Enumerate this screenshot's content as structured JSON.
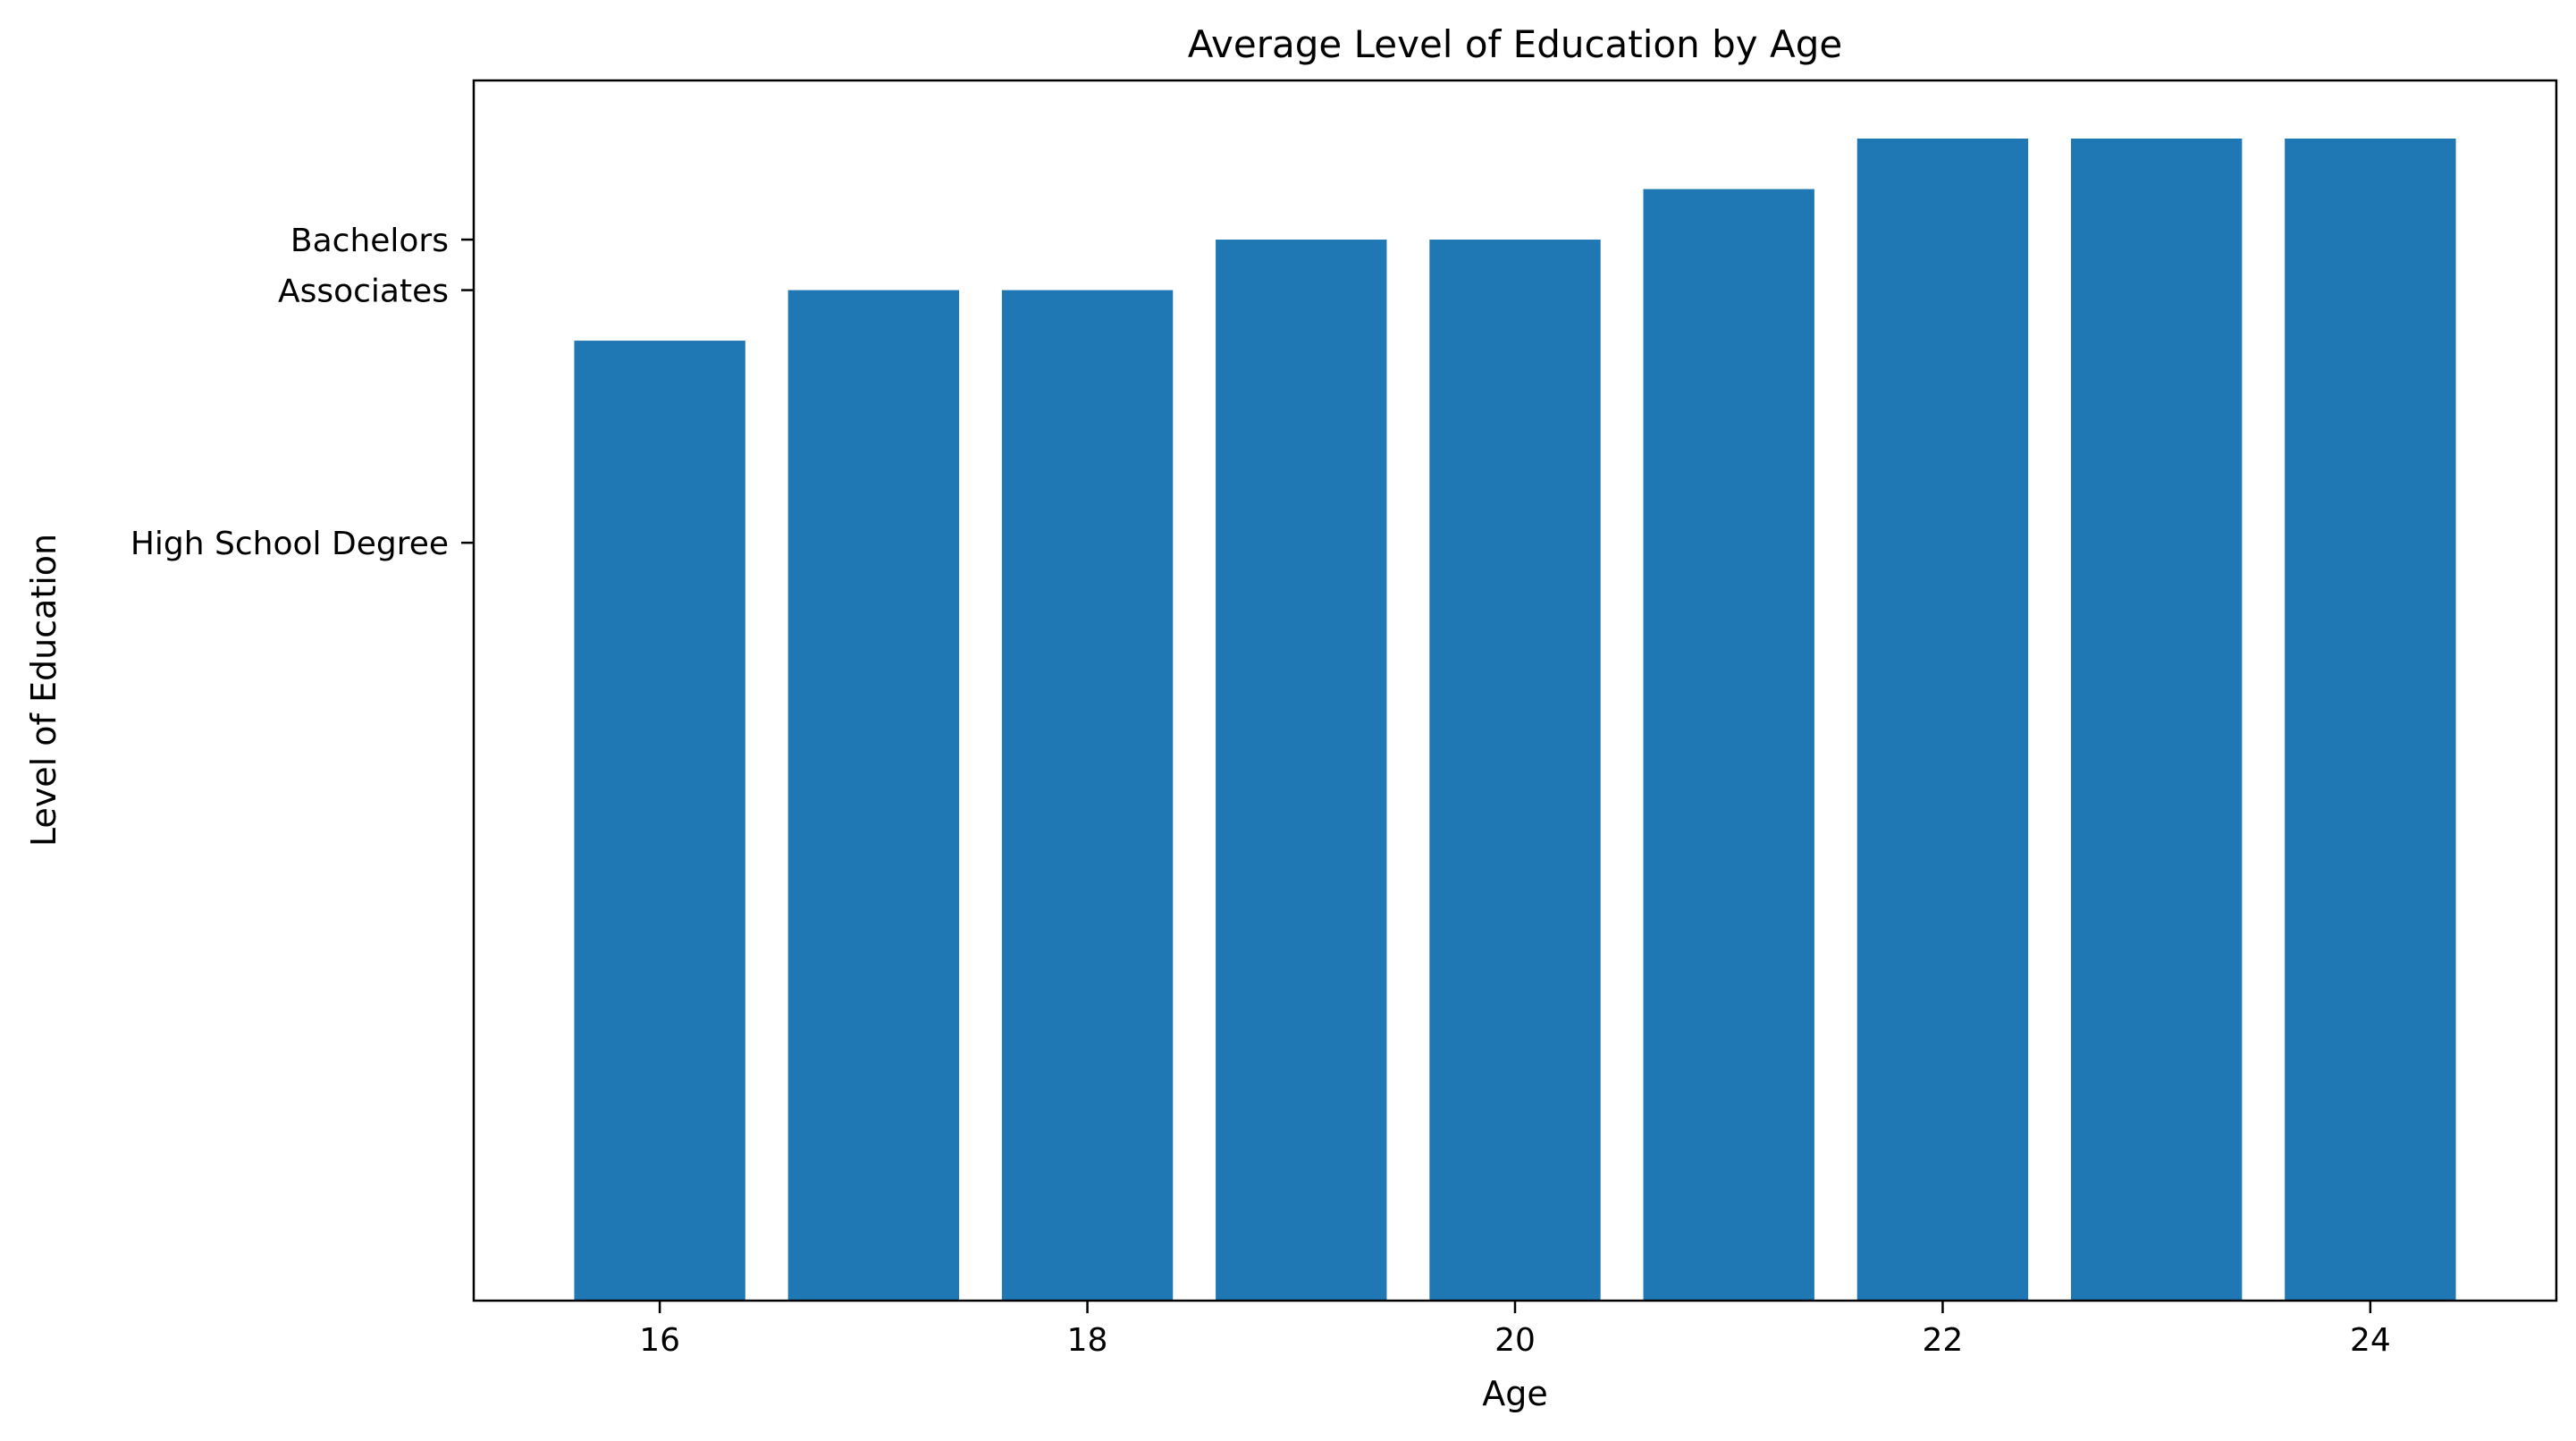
{
  "chart_data": {
    "type": "bar",
    "title": "Average Level of Education by Age",
    "xlabel": "Age",
    "ylabel": "Level of Education",
    "categories": [
      16,
      17,
      18,
      19,
      20,
      21,
      22,
      23,
      24
    ],
    "values": [
      19,
      20,
      20,
      21,
      21,
      22,
      23,
      23,
      23
    ],
    "xticks": [
      {
        "value": 16,
        "label": "16"
      },
      {
        "value": 18,
        "label": "18"
      },
      {
        "value": 20,
        "label": "20"
      },
      {
        "value": 22,
        "label": "22"
      },
      {
        "value": 24,
        "label": "24"
      }
    ],
    "yticks": [
      {
        "value": 15,
        "label": "High School Degree"
      },
      {
        "value": 20,
        "label": "Associates"
      },
      {
        "value": 21,
        "label": "Bachelors"
      }
    ],
    "xlim": [
      15.13,
      24.87
    ],
    "ylim": [
      0,
      24.15
    ],
    "grid": false,
    "bar_color": "#1f77b4"
  }
}
